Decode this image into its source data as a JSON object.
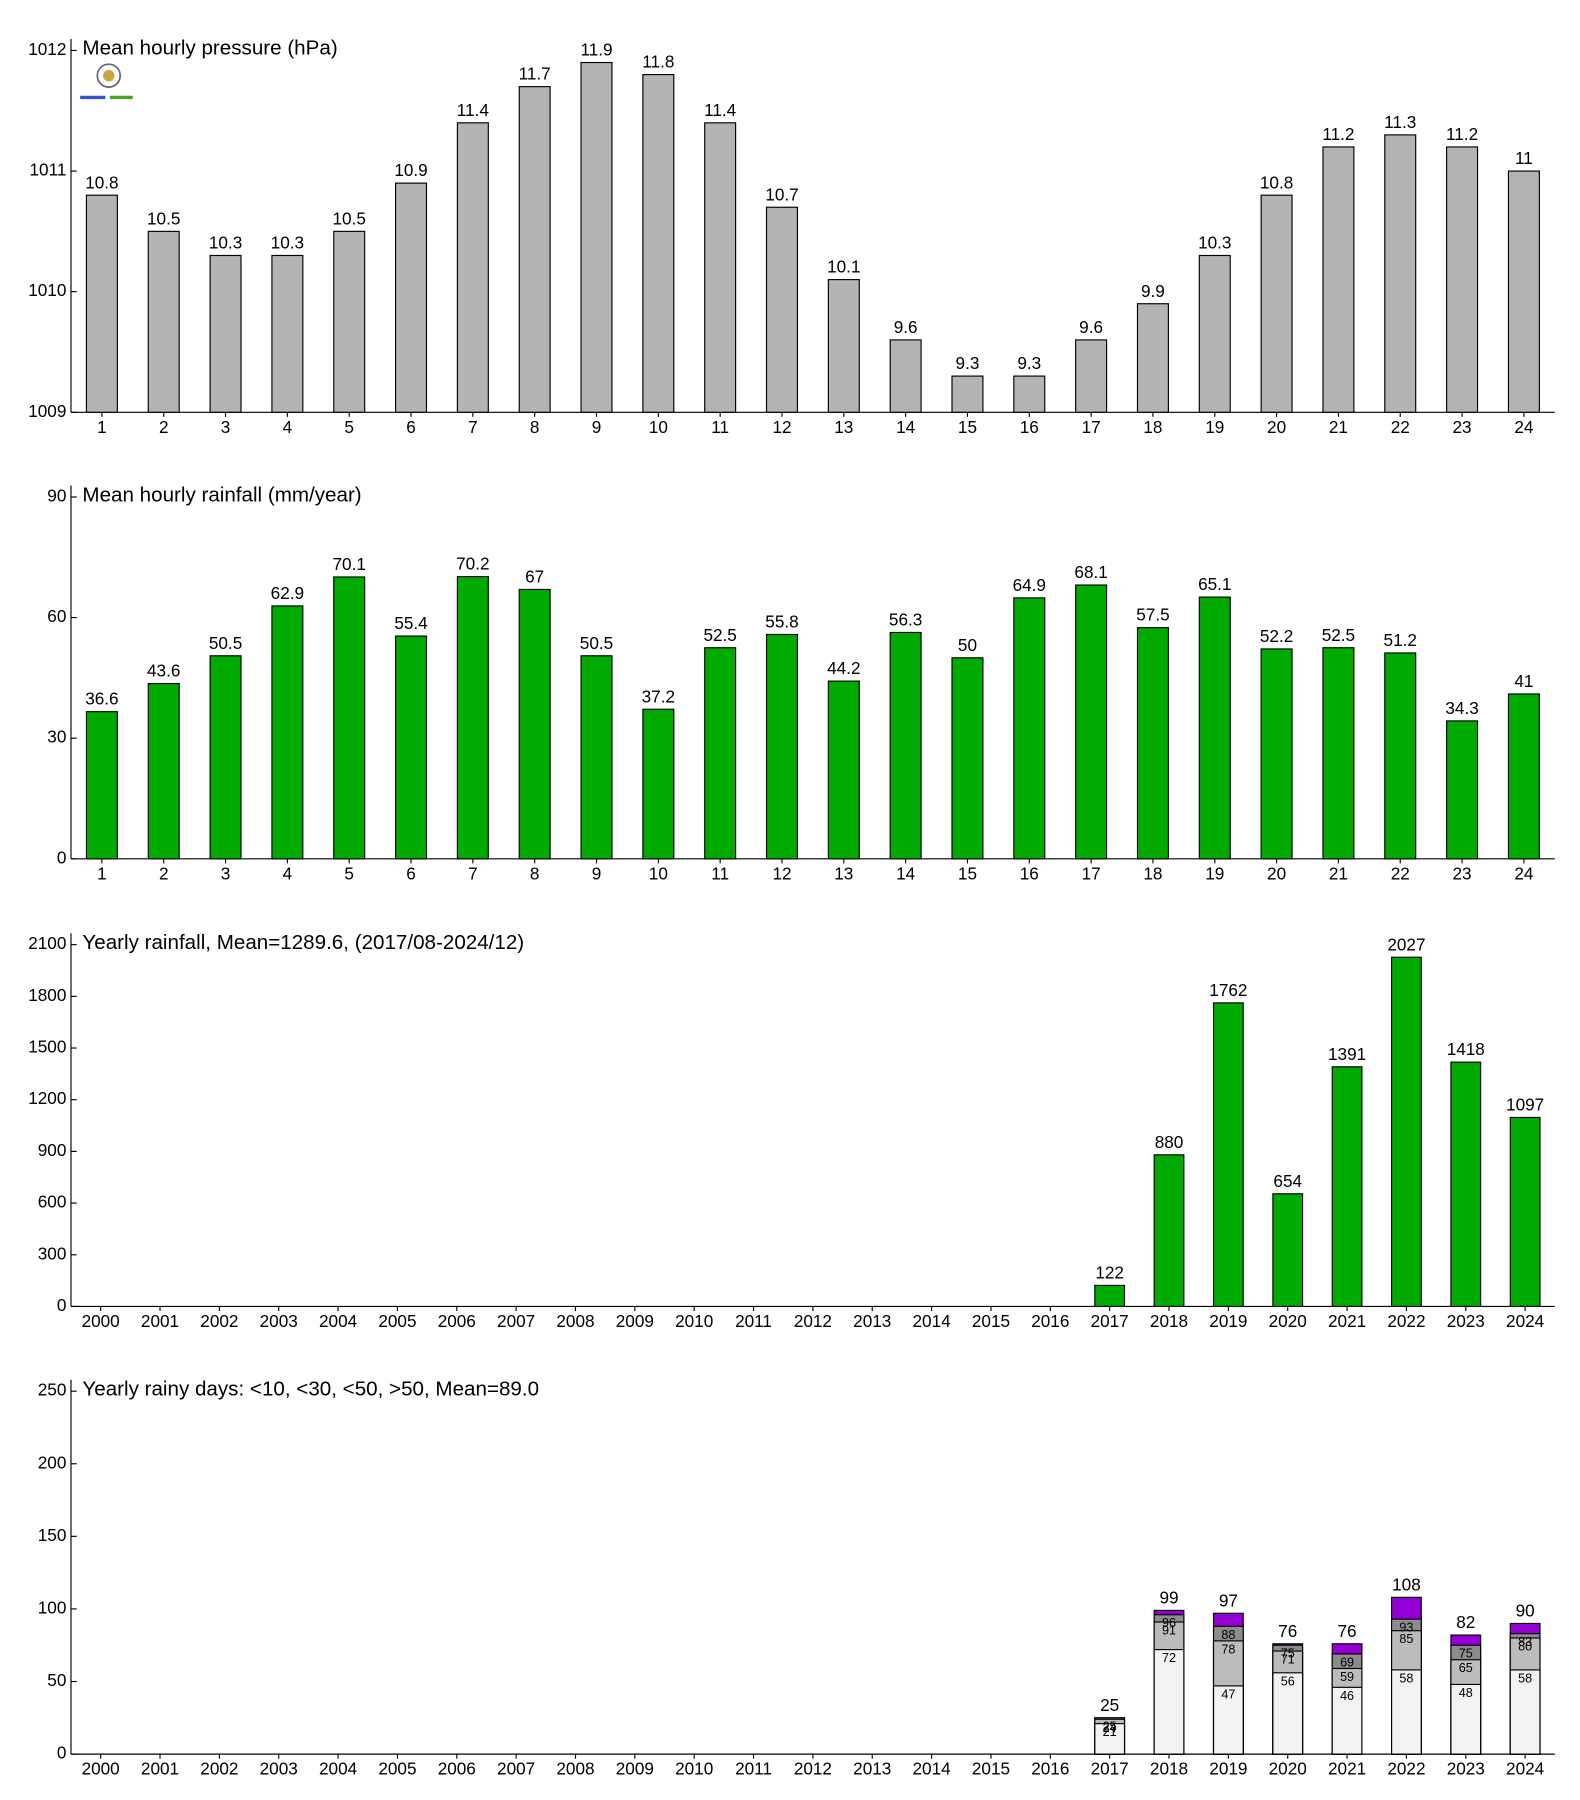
{
  "chart_data": [
    {
      "type": "bar",
      "title": "Mean hourly pressure (hPa)",
      "categories": [
        "1",
        "2",
        "3",
        "4",
        "5",
        "6",
        "7",
        "8",
        "9",
        "10",
        "11",
        "12",
        "13",
        "14",
        "15",
        "16",
        "17",
        "18",
        "19",
        "20",
        "21",
        "22",
        "23",
        "24"
      ],
      "values": [
        1010.8,
        1010.5,
        1010.3,
        1010.3,
        1010.5,
        1010.9,
        1011.4,
        1011.7,
        1011.9,
        1011.8,
        1011.4,
        1010.7,
        1010.1,
        1009.6,
        1009.3,
        1009.3,
        1009.6,
        1009.9,
        1010.3,
        1010.8,
        1011.2,
        1011.3,
        1011.2,
        1011
      ],
      "value_labels": [
        "10.8",
        "10.5",
        "10.3",
        "10.3",
        "10.5",
        "10.9",
        "11.4",
        "11.7",
        "11.9",
        "11.8",
        "11.4",
        "10.7",
        "10.1",
        "9.6",
        "9.3",
        "9.3",
        "9.6",
        "9.9",
        "10.3",
        "10.8",
        "11.2",
        "11.3",
        "11.2",
        "11"
      ],
      "color": "#b4b4b4",
      "ylim": [
        1009,
        1012
      ],
      "yticks": [
        1009,
        1010,
        1011,
        1012
      ]
    },
    {
      "type": "bar",
      "title": "Mean hourly rainfall (mm/year)",
      "categories": [
        "1",
        "2",
        "3",
        "4",
        "5",
        "6",
        "7",
        "8",
        "9",
        "10",
        "11",
        "12",
        "13",
        "14",
        "15",
        "16",
        "17",
        "18",
        "19",
        "20",
        "21",
        "22",
        "23",
        "24"
      ],
      "values": [
        36.6,
        43.6,
        50.5,
        62.9,
        70.1,
        55.4,
        70.2,
        67,
        50.5,
        37.2,
        52.5,
        55.8,
        44.2,
        56.3,
        50,
        64.9,
        68.1,
        57.5,
        65.1,
        52.2,
        52.5,
        51.2,
        34.3,
        41
      ],
      "color": "#00aa00",
      "ylim": [
        0,
        90
      ],
      "yticks": [
        0,
        30,
        60,
        90
      ]
    },
    {
      "type": "bar",
      "title": "Yearly rainfall, Mean=1289.6, (2017/08-2024/12)",
      "categories": [
        "2000",
        "2001",
        "2002",
        "2003",
        "2004",
        "2005",
        "2006",
        "2007",
        "2008",
        "2009",
        "2010",
        "2011",
        "2012",
        "2013",
        "2014",
        "2015",
        "2016",
        "2017",
        "2018",
        "2019",
        "2020",
        "2021",
        "2022",
        "2023",
        "2024"
      ],
      "values": [
        null,
        null,
        null,
        null,
        null,
        null,
        null,
        null,
        null,
        null,
        null,
        null,
        null,
        null,
        null,
        null,
        null,
        122,
        880,
        1762,
        654,
        1391,
        2027,
        1418,
        1097
      ],
      "color": "#00aa00",
      "ylim": [
        0,
        2100
      ],
      "yticks": [
        0,
        300,
        600,
        900,
        1200,
        1500,
        1800,
        2100
      ]
    },
    {
      "type": "bar",
      "title": "Yearly rainy days: <10, <30, <50, >50, Mean=89.0",
      "categories": [
        "2000",
        "2001",
        "2002",
        "2003",
        "2004",
        "2005",
        "2006",
        "2007",
        "2008",
        "2009",
        "2010",
        "2011",
        "2012",
        "2013",
        "2014",
        "2015",
        "2016",
        "2017",
        "2018",
        "2019",
        "2020",
        "2021",
        "2022",
        "2023",
        "2024"
      ],
      "series": [
        {
          "color": "#f2f2f2",
          "values": [
            null,
            null,
            null,
            null,
            null,
            null,
            null,
            null,
            null,
            null,
            null,
            null,
            null,
            null,
            null,
            null,
            null,
            21,
            72,
            47,
            56,
            46,
            58,
            48,
            58
          ]
        },
        {
          "color": "#bcbcbc",
          "values": [
            null,
            null,
            null,
            null,
            null,
            null,
            null,
            null,
            null,
            null,
            null,
            null,
            null,
            null,
            null,
            null,
            null,
            24,
            91,
            78,
            71,
            59,
            85,
            65,
            80
          ]
        },
        {
          "color": "#8c8c8c",
          "values": [
            null,
            null,
            null,
            null,
            null,
            null,
            null,
            null,
            null,
            null,
            null,
            null,
            null,
            null,
            null,
            null,
            null,
            25,
            96,
            88,
            75,
            69,
            93,
            75,
            83
          ]
        },
        {
          "color": "#9400d3",
          "values": [
            null,
            null,
            null,
            null,
            null,
            null,
            null,
            null,
            null,
            null,
            null,
            null,
            null,
            null,
            null,
            null,
            null,
            25,
            99,
            97,
            76,
            76,
            108,
            82,
            90
          ]
        }
      ],
      "ylim": [
        0,
        250
      ],
      "yticks": [
        0,
        50,
        100,
        150,
        200,
        250
      ]
    }
  ]
}
